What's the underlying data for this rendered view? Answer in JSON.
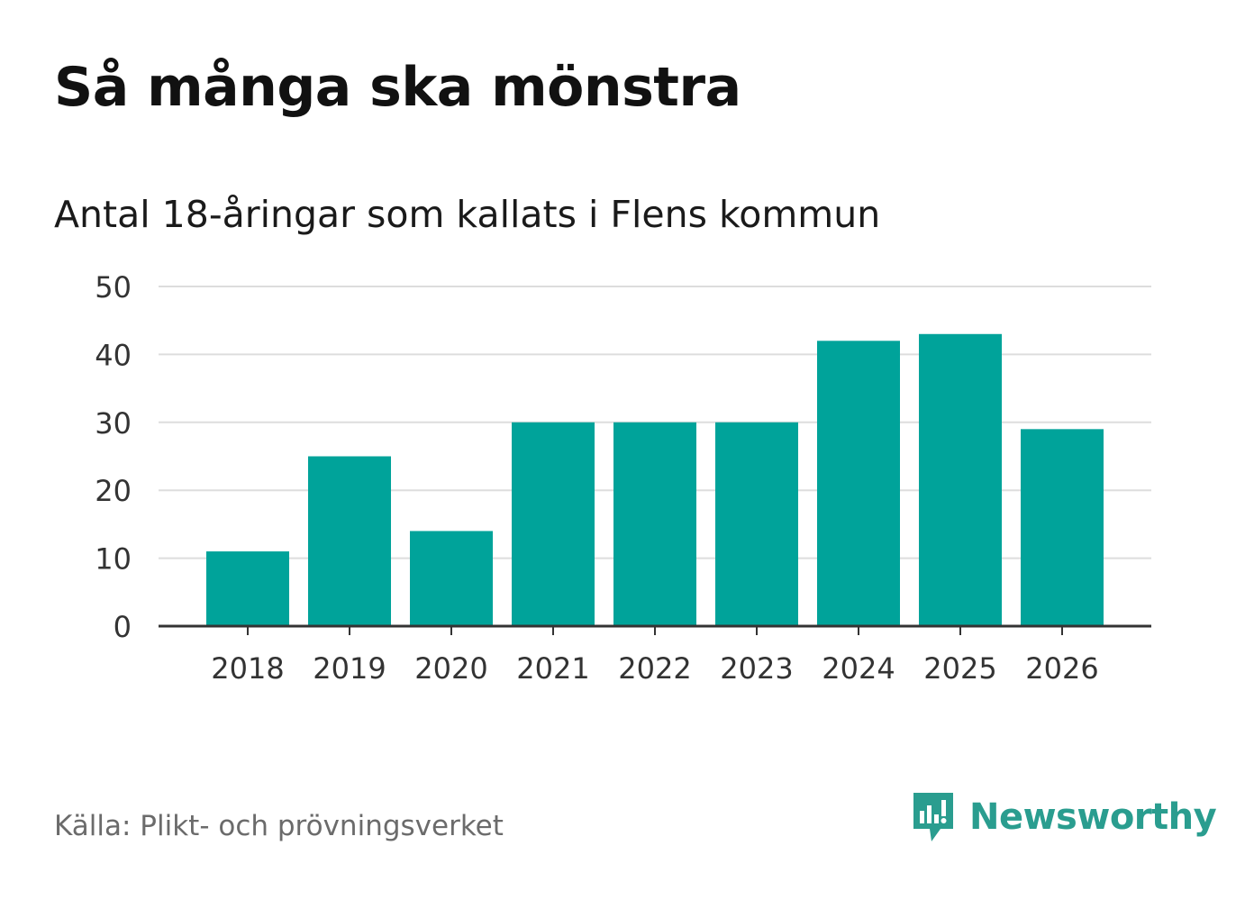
{
  "title": "Så många ska mönstra",
  "subtitle": "Antal 18-åringar som kallats i Flens kommun",
  "source": "Källa: Plikt- och prövningsverket",
  "brand": {
    "name": "Newsworthy",
    "icon": "newsworthy-logo-icon",
    "color": "#2a9d8f"
  },
  "colors": {
    "bar": "#00a39a",
    "grid": "#dddddd",
    "axis": "#333333",
    "text": "#333333"
  },
  "chart_data": {
    "type": "bar",
    "title": "Så många ska mönstra",
    "subtitle": "Antal 18-åringar som kallats i Flens kommun",
    "categories": [
      "2018",
      "2019",
      "2020",
      "2021",
      "2022",
      "2023",
      "2024",
      "2025",
      "2026"
    ],
    "values": [
      11,
      25,
      14,
      30,
      30,
      30,
      42,
      43,
      29
    ],
    "yticks": [
      0,
      10,
      20,
      30,
      40,
      50
    ],
    "ylim": [
      0,
      50
    ],
    "xlabel": "",
    "ylabel": "",
    "grid": true
  }
}
